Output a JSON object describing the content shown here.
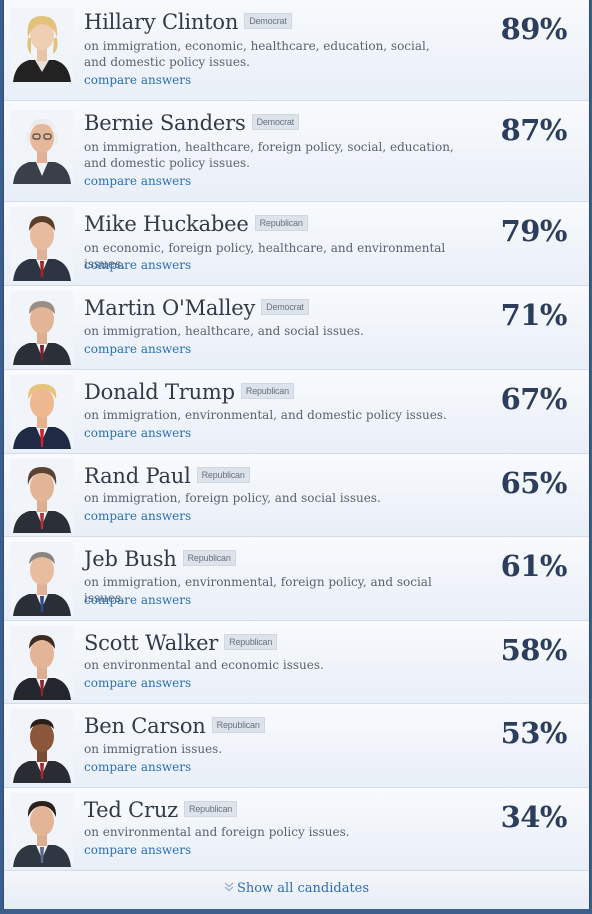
{
  "candidates": [
    {
      "name": "Hillary Clinton",
      "party": "Democrat",
      "issues": "on immigration, economic, healthcare, education, social, and domestic policy issues.",
      "compare": "compare answers",
      "percent": "89%",
      "photo": "candidate-photo"
    },
    {
      "name": "Bernie Sanders",
      "party": "Democrat",
      "issues": "on immigration, healthcare, foreign policy, social, education, and domestic policy issues.",
      "compare": "compare answers",
      "percent": "87%",
      "photo": "candidate-photo"
    },
    {
      "name": "Mike Huckabee",
      "party": "Republican",
      "issues": "on economic, foreign policy, healthcare, and environmental issues.",
      "compare": "compare answers",
      "percent": "79%",
      "photo": "candidate-photo"
    },
    {
      "name": "Martin O'Malley",
      "party": "Democrat",
      "issues": "on immigration, healthcare, and social issues.",
      "compare": "compare answers",
      "percent": "71%",
      "photo": "candidate-photo"
    },
    {
      "name": "Donald Trump",
      "party": "Republican",
      "issues": "on immigration, environmental, and domestic policy issues.",
      "compare": "compare answers",
      "percent": "67%",
      "photo": "candidate-photo"
    },
    {
      "name": "Rand Paul",
      "party": "Republican",
      "issues": "on immigration, foreign policy, and social issues.",
      "compare": "compare answers",
      "percent": "65%",
      "photo": "candidate-photo"
    },
    {
      "name": "Jeb Bush",
      "party": "Republican",
      "issues": "on immigration, environmental, foreign policy, and social issues.",
      "compare": "compare answers",
      "percent": "61%",
      "photo": "candidate-photo"
    },
    {
      "name": "Scott Walker",
      "party": "Republican",
      "issues": "on environmental and economic issues.",
      "compare": "compare answers",
      "percent": "58%",
      "photo": "candidate-photo"
    },
    {
      "name": "Ben Carson",
      "party": "Republican",
      "issues": "on immigration issues.",
      "compare": "compare answers",
      "percent": "53%",
      "photo": "candidate-photo"
    },
    {
      "name": "Ted Cruz",
      "party": "Republican",
      "issues": "on environmental and foreign policy issues.",
      "compare": "compare answers",
      "percent": "34%",
      "photo": "candidate-photo"
    }
  ],
  "footer": {
    "show_all": "Show all candidates",
    "icon": "double-chevron-down-icon"
  },
  "colors": {
    "accent_link": "#2a6fb3",
    "percent": "#2c3e5c",
    "background": "#3b5f8a"
  }
}
